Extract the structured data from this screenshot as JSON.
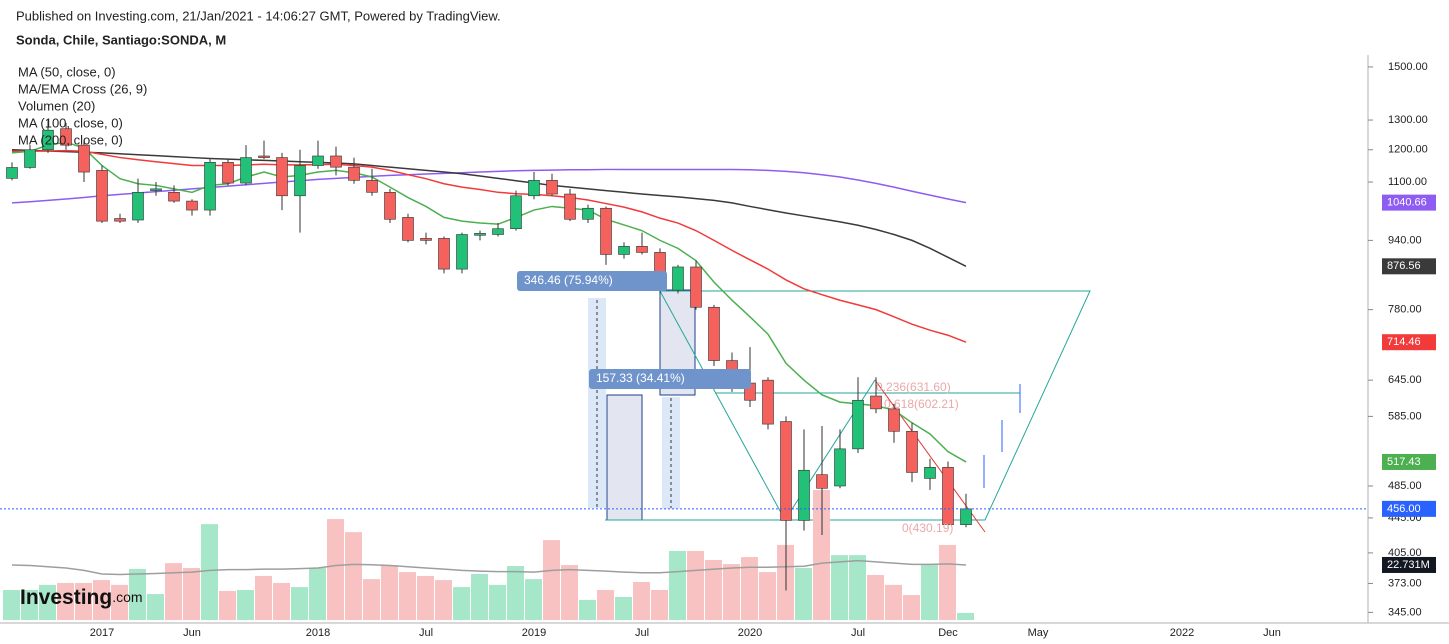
{
  "chart_data": {
    "type": "candlestick",
    "publisher": "Published on Investing.com, 21/Jan/2021 - 14:06:27 GMT, Powered by TradingView.",
    "title": "Sonda, Chile, Santiago:SONDA, M",
    "legend": [
      "MA (50, close, 0)",
      "MA/EMA Cross (26, 9)",
      "Volumen (20)",
      "MA (100, close, 0)",
      "MA (200, close, 0)"
    ],
    "logo": {
      "name": "Investing",
      "suffix": ".com"
    },
    "log_scale": true,
    "grid": false,
    "categories": [
      null,
      null,
      null,
      null,
      null,
      "2017",
      null,
      null,
      null,
      null,
      "Jun",
      null,
      null,
      null,
      null,
      null,
      null,
      "2018",
      null,
      null,
      null,
      null,
      null,
      "Jul",
      null,
      null,
      null,
      null,
      null,
      "2019",
      null,
      null,
      null,
      null,
      null,
      "Jul",
      null,
      null,
      null,
      null,
      null,
      "2020",
      null,
      null,
      null,
      null,
      null,
      "Jul",
      null,
      null,
      null,
      null,
      "Dec",
      null,
      null,
      null,
      null,
      "May",
      null,
      null,
      null,
      null,
      null,
      null,
      null,
      "2022",
      null,
      null,
      null,
      null,
      "Jun"
    ],
    "ylim": [
      338,
      1549
    ],
    "yticks": [
      {
        "value": 345,
        "label": "345.00"
      },
      {
        "value": 373,
        "label": "373.00"
      },
      {
        "value": 405,
        "label": "405.00"
      },
      {
        "value": 445,
        "label": "445.00"
      },
      {
        "value": 485,
        "label": "485.00"
      },
      {
        "value": 585,
        "label": "585.00"
      },
      {
        "value": 645,
        "label": "645.00"
      },
      {
        "value": 780,
        "label": "780.00"
      },
      {
        "value": 940,
        "label": "940.00"
      },
      {
        "value": 1100,
        "label": "1100.00"
      },
      {
        "value": 1200,
        "label": "1200.00"
      },
      {
        "value": 1300,
        "label": "1300.00"
      },
      {
        "value": 1500,
        "label": "1500.00"
      }
    ],
    "up_color": "#22c178",
    "down_color": "#f5615c",
    "open": [
      1111,
      1144,
      1200,
      1270,
      1215,
      1135,
      997,
      993,
      1075,
      1070,
      1045,
      1020,
      1160,
      1097,
      1180,
      1175,
      1060,
      1150,
      1180,
      1145,
      1105,
      1070,
      1000,
      945,
      945,
      870,
      953,
      955,
      970,
      1060,
      1105,
      1065,
      995,
      1025,
      905,
      925,
      910,
      822,
      875,
      785,
      680,
      640,
      645,
      577,
      442,
      500,
      485,
      536,
      618,
      597,
      562,
      495,
      510,
      437,
      null,
      null,
      null,
      null,
      null,
      null,
      null,
      null,
      null,
      null,
      null,
      null,
      null,
      null,
      null,
      null,
      null
    ],
    "high": [
      1160,
      1215,
      1300,
      1290,
      1230,
      1150,
      1010,
      1110,
      1100,
      1090,
      1050,
      1170,
      1170,
      1215,
      1230,
      1190,
      1200,
      1230,
      1210,
      1175,
      1140,
      1080,
      1010,
      960,
      950,
      960,
      965,
      985,
      1075,
      1130,
      1125,
      1080,
      1035,
      1030,
      935,
      960,
      920,
      880,
      890,
      790,
      695,
      705,
      650,
      585,
      565,
      570,
      565,
      650,
      650,
      605,
      575,
      522,
      518,
      475,
      null,
      null,
      null,
      null,
      null,
      null,
      null,
      null,
      null,
      null,
      null,
      null,
      null,
      null,
      null,
      null,
      null
    ],
    "low": [
      1105,
      1140,
      1190,
      1200,
      1100,
      985,
      985,
      985,
      1060,
      1040,
      1005,
      1005,
      1090,
      1090,
      1170,
      1020,
      960,
      1140,
      1120,
      1095,
      1060,
      985,
      935,
      930,
      860,
      860,
      940,
      950,
      965,
      1050,
      1060,
      990,
      985,
      880,
      895,
      905,
      815,
      815,
      780,
      670,
      625,
      600,
      565,
      366,
      430,
      425,
      482,
      530,
      590,
      545,
      490,
      480,
      435,
      434,
      null,
      null,
      null,
      null,
      null,
      null,
      null,
      null,
      null,
      null,
      null,
      null,
      null,
      null,
      null,
      null,
      null
    ],
    "close": [
      1144,
      1200,
      1265,
      1215,
      1130,
      990,
      990,
      1070,
      1080,
      1045,
      1020,
      1160,
      1097,
      1175,
      1175,
      1060,
      1150,
      1180,
      1145,
      1105,
      1070,
      995,
      940,
      940,
      870,
      955,
      958,
      970,
      1060,
      1105,
      1065,
      995,
      1025,
      905,
      925,
      910,
      822,
      875,
      785,
      680,
      640,
      611,
      573,
      442,
      506,
      482,
      536,
      611,
      597,
      562,
      503,
      510,
      437,
      456,
      null,
      null,
      null,
      null,
      null,
      null,
      null,
      null,
      null,
      null,
      null,
      null,
      null,
      null,
      null,
      null,
      null
    ],
    "price_line": {
      "value": 456,
      "label": "456.00",
      "color": "#2962ff"
    },
    "volume": {
      "up_color": "#a6e6c9",
      "down_color": "#f9c2c2",
      "values": [
        12.4,
        12.4,
        14.5,
        15.3,
        15.3,
        16.5,
        14.5,
        21.1,
        10.7,
        23.5,
        21.5,
        39.6,
        12.0,
        12.4,
        18.2,
        15.3,
        13.6,
        21.5,
        41.7,
        36.3,
        16.9,
        22.7,
        19.8,
        18.2,
        16.5,
        13.6,
        19.0,
        14.5,
        22.3,
        16.9,
        33.0,
        22.7,
        8.3,
        12.4,
        9.5,
        15.7,
        12.4,
        28.5,
        28.5,
        24.8,
        23.1,
        26.0,
        19.8,
        31.0,
        21.5,
        53.7,
        26.8,
        26.8,
        18.6,
        14.5,
        10.3,
        22.7,
        31.0,
        2.9,
        null,
        null,
        null,
        null,
        null,
        null,
        null,
        null,
        null,
        null,
        null,
        null,
        null,
        null,
        null,
        null,
        null
      ]
    },
    "volume_ma": {
      "color": "#9e9e9e",
      "label_color": "#131722",
      "values": [
        22.7,
        22.5,
        22.0,
        21.5,
        20.5,
        19.0,
        18.8,
        19.0,
        19.2,
        19.5,
        19.8,
        20.5,
        20.8,
        20.8,
        21.0,
        21.0,
        21.2,
        21.5,
        22.5,
        23.0,
        22.8,
        22.5,
        22.0,
        21.5,
        21.0,
        20.5,
        20.2,
        20.0,
        20.0,
        19.8,
        20.5,
        20.8,
        20.5,
        20.2,
        19.8,
        19.5,
        19.5,
        20.0,
        20.5,
        21.0,
        21.5,
        21.8,
        21.8,
        22.0,
        22.2,
        23.5,
        24.0,
        24.5,
        24.0,
        23.5,
        23.0,
        23.0,
        23.2,
        22.731,
        null,
        null,
        null,
        null,
        null,
        null,
        null,
        null,
        null,
        null,
        null,
        null,
        null,
        null,
        null,
        null,
        null
      ],
      "value_labels": [
        null,
        null,
        null,
        null,
        null,
        null,
        null,
        null,
        null,
        null,
        null,
        null,
        null,
        null,
        null,
        null,
        null,
        null,
        null,
        null,
        null,
        null,
        null,
        null,
        null,
        null,
        null,
        null,
        null,
        null,
        null,
        null,
        null,
        null,
        null,
        null,
        null,
        null,
        null,
        null,
        null,
        null,
        null,
        null,
        null,
        null,
        null,
        null,
        null,
        null,
        null,
        null,
        null,
        "22.731M",
        null,
        null,
        null,
        null,
        null,
        null,
        null,
        null,
        null,
        null,
        null,
        null,
        null,
        null,
        null,
        null,
        null
      ]
    },
    "lines": [
      {
        "color": "#8e5cf2",
        "values": [
          1040,
          1043,
          1047,
          1051,
          1055,
          1060,
          1064,
          1068,
          1072,
          1076,
          1080,
          1084,
          1088,
          1092,
          1096,
          1100,
          1104,
          1108,
          1111,
          1114,
          1117,
          1120,
          1122,
          1124,
          1126,
          1128,
          1130,
          1132,
          1134,
          1135,
          1136,
          1137,
          1137,
          1138,
          1138,
          1138,
          1138,
          1138,
          1138,
          1138,
          1138,
          1137,
          1135,
          1132,
          1128,
          1122,
          1115,
          1106,
          1096,
          1085,
          1073,
          1062,
          1051,
          1040.66,
          null,
          null,
          null,
          null,
          null,
          null,
          null,
          null,
          null,
          null,
          null,
          null,
          null,
          null,
          null,
          null,
          null
        ]
      },
      {
        "color": "#3a3a3a",
        "values": [
          1200,
          1198,
          1196,
          1194,
          1192,
          1190,
          1187,
          1184,
          1181,
          1178,
          1175,
          1172,
          1170,
          1168,
          1166,
          1164,
          1162,
          1160,
          1158,
          1155,
          1150,
          1145,
          1140,
          1135,
          1130,
          1125,
          1118,
          1111,
          1104,
          1097,
          1090,
          1085,
          1080,
          1075,
          1070,
          1065,
          1061,
          1057,
          1052,
          1047,
          1040,
          1030,
          1021,
          1012,
          1004,
          996,
          988,
          979,
          968,
          955,
          940,
          920,
          898,
          876.56,
          null,
          null,
          null,
          null,
          null,
          null,
          null,
          null,
          null,
          null,
          null,
          null,
          null,
          null,
          null,
          null,
          null
        ]
      },
      {
        "color": "#f23a3a",
        "values": [
          1195,
          1195,
          1196,
          1197,
          1195,
          1185,
          1175,
          1168,
          1162,
          1156,
          1150,
          1150,
          1150,
          1152,
          1154,
          1152,
          1152,
          1153,
          1154,
          1150,
          1145,
          1135,
          1122,
          1110,
          1095,
          1085,
          1078,
          1070,
          1066,
          1064,
          1060,
          1055,
          1048,
          1038,
          1028,
          1015,
          998,
          985,
          965,
          940,
          915,
          892,
          870,
          845,
          825,
          812,
          800,
          790,
          780,
          765,
          750,
          738,
          728,
          714.46,
          null,
          null,
          null,
          null,
          null,
          null,
          null,
          null,
          null,
          null,
          null,
          null,
          null,
          null,
          null,
          null,
          null
        ]
      },
      {
        "color": "#4caf50",
        "values": [
          1190,
          1195,
          1215,
          1225,
          1205,
          1150,
          1110,
          1095,
          1090,
          1080,
          1070,
          1090,
          1095,
          1115,
          1130,
          1115,
          1120,
          1130,
          1135,
          1128,
          1115,
          1085,
          1055,
          1030,
          1000,
          990,
          985,
          982,
          1000,
          1020,
          1030,
          1025,
          1020,
          995,
          980,
          965,
          940,
          920,
          890,
          840,
          800,
          765,
          730,
          675,
          645,
          620,
          608,
          605,
          602,
          595,
          575,
          558,
          532,
          517.43,
          null,
          null,
          null,
          null,
          null,
          null,
          null,
          null,
          null,
          null,
          null,
          null,
          null,
          null,
          null,
          null,
          null
        ]
      }
    ],
    "annotations": {
      "measure_1": "346.46 (75.94%)",
      "measure_2": "157.33 (34.41%)",
      "fib_1": "0.236(631.60)",
      "fib_2": "0.618(602.21)",
      "fib_3": "0(430.19)"
    }
  }
}
